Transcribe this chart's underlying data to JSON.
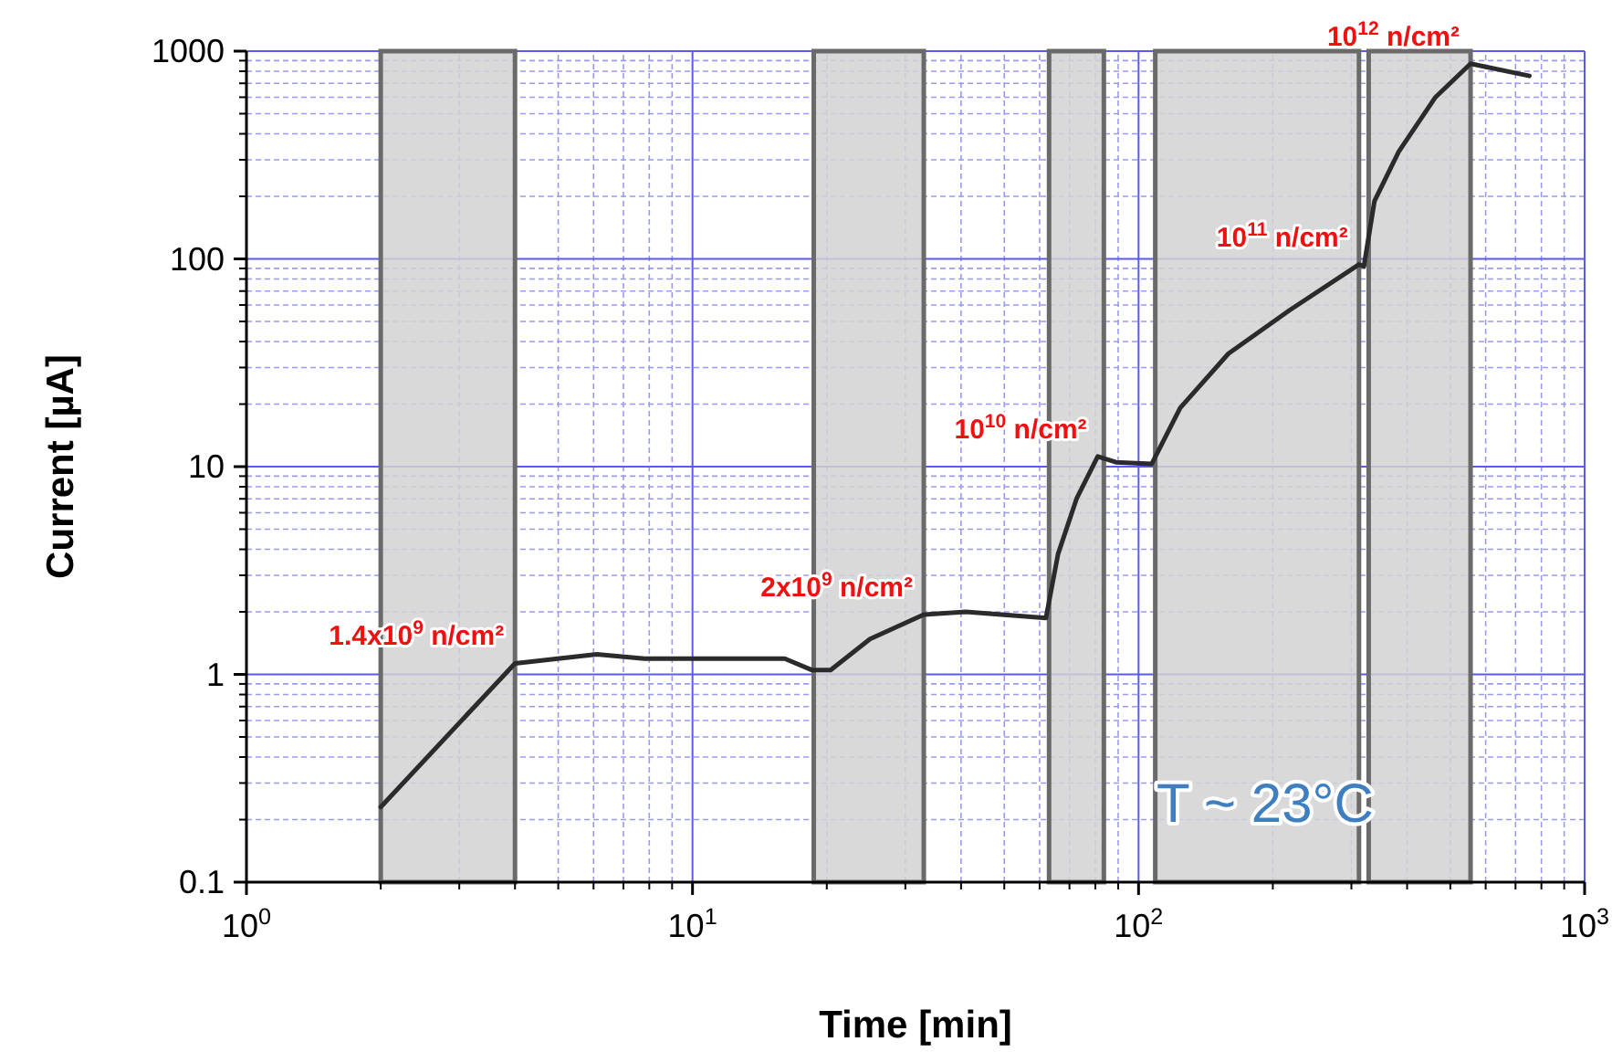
{
  "chart_data": {
    "type": "line",
    "xlabel": "Time [min]",
    "ylabel": "Current [µA]",
    "log": "xy",
    "grid": true,
    "line_style": "solid",
    "xlim": [
      1,
      1000
    ],
    "ylim": [
      0.1,
      1000
    ],
    "xticks": [
      {
        "value": 1,
        "label": "10$^{0}$"
      },
      {
        "value": 2,
        "label": null
      },
      {
        "value": 3,
        "label": null
      },
      {
        "value": 4,
        "label": null
      },
      {
        "value": 5,
        "label": null
      },
      {
        "value": 6,
        "label": null
      },
      {
        "value": 7,
        "label": null
      },
      {
        "value": 8,
        "label": null
      },
      {
        "value": 9,
        "label": null
      },
      {
        "value": 10,
        "label": "10$^{1}$"
      },
      {
        "value": 20,
        "label": null
      },
      {
        "value": 30,
        "label": null
      },
      {
        "value": 40,
        "label": null
      },
      {
        "value": 50,
        "label": null
      },
      {
        "value": 60,
        "label": null
      },
      {
        "value": 70,
        "label": null
      },
      {
        "value": 80,
        "label": null
      },
      {
        "value": 90,
        "label": null
      },
      {
        "value": 100,
        "label": "10$^{2}$"
      },
      {
        "value": 200,
        "label": null
      },
      {
        "value": 300,
        "label": null
      },
      {
        "value": 400,
        "label": null
      },
      {
        "value": 500,
        "label": null
      },
      {
        "value": 600,
        "label": null
      },
      {
        "value": 700,
        "label": null
      },
      {
        "value": 800,
        "label": null
      },
      {
        "value": 900,
        "label": null
      },
      {
        "value": 1000,
        "label": "10$^{3}$"
      }
    ],
    "yticks": [
      0.1,
      {
        "value": 0.2,
        "label": null
      },
      {
        "value": 0.3,
        "label": null
      },
      {
        "value": 0.4,
        "label": null
      },
      {
        "value": 0.5,
        "label": null
      },
      {
        "value": 0.6,
        "label": null
      },
      {
        "value": 0.7,
        "label": null
      },
      {
        "value": 0.8,
        "label": null
      },
      {
        "value": 0.9,
        "label": null
      },
      1,
      {
        "value": 2,
        "label": null
      },
      {
        "value": 3,
        "label": null
      },
      {
        "value": 4,
        "label": null
      },
      {
        "value": 5,
        "label": null
      },
      {
        "value": 6,
        "label": null
      },
      {
        "value": 7,
        "label": null
      },
      {
        "value": 8,
        "label": null
      },
      {
        "value": 9,
        "label": null
      },
      10,
      {
        "value": 20,
        "label": null
      },
      {
        "value": 30,
        "label": null
      },
      {
        "value": 40,
        "label": null
      },
      {
        "value": 50,
        "label": null
      },
      {
        "value": 60,
        "label": null
      },
      {
        "value": 70,
        "label": null
      },
      {
        "value": 80,
        "label": null
      },
      {
        "value": 90,
        "label": null
      },
      100,
      {
        "value": 200,
        "label": null
      },
      {
        "value": 300,
        "label": null
      },
      {
        "value": 400,
        "label": null
      },
      {
        "value": 500,
        "label": null
      },
      {
        "value": 600,
        "label": null
      },
      {
        "value": 700,
        "label": null
      },
      {
        "value": 800,
        "label": null
      },
      {
        "value": 900,
        "label": null
      },
      1000
    ],
    "series": [
      {
        "color": "#2b2b2b",
        "x": [
          2,
          4,
          6.1,
          7.8,
          16.1,
          18.5,
          20.4,
          25,
          33,
          41,
          62,
          66,
          72.6,
          81,
          89,
          107,
          124,
          159,
          218,
          312,
          320,
          338,
          383,
          463,
          555,
          752
        ],
        "values": [
          0.23,
          1.13,
          1.25,
          1.19,
          1.19,
          1.05,
          1.05,
          1.48,
          1.94,
          2,
          1.87,
          3.8,
          7,
          11.2,
          10.5,
          10.3,
          19.2,
          35,
          56.6,
          94,
          92,
          190,
          328,
          600,
          870,
          760
        ]
      }
    ],
    "bands": [
      {
        "axis": "x",
        "from": 2,
        "to": 4,
        "color": "#d4d2d4"
      },
      {
        "axis": "x",
        "from": 18.7,
        "to": 33,
        "color": "#d4d2d4"
      },
      {
        "axis": "x",
        "from": 63,
        "to": 83.6,
        "color": "#d4d2d4"
      },
      {
        "axis": "x",
        "from": 109,
        "to": 312,
        "color": "#d4d2d4"
      },
      {
        "axis": "x",
        "from": 328,
        "to": 555,
        "color": "#d4d2d4"
      }
    ],
    "annotations": [
      {
        "text": "1.4x10$^{9}$ n/cm²",
        "x": 4,
        "y": 1.13
      },
      {
        "text": "2x10$^{9}$ n/cm²",
        "x": 33,
        "y": 1.94
      },
      {
        "text": "10$^{10}$ n/cm²",
        "x": 81,
        "y": 11.2
      },
      {
        "text": "10$^{11}$ n/cm²",
        "x": 312,
        "y": 94
      },
      {
        "text": "10$^{12}$ n/cm²",
        "x": 555,
        "y": 870
      },
      "T ~ 23°C"
    ]
  }
}
